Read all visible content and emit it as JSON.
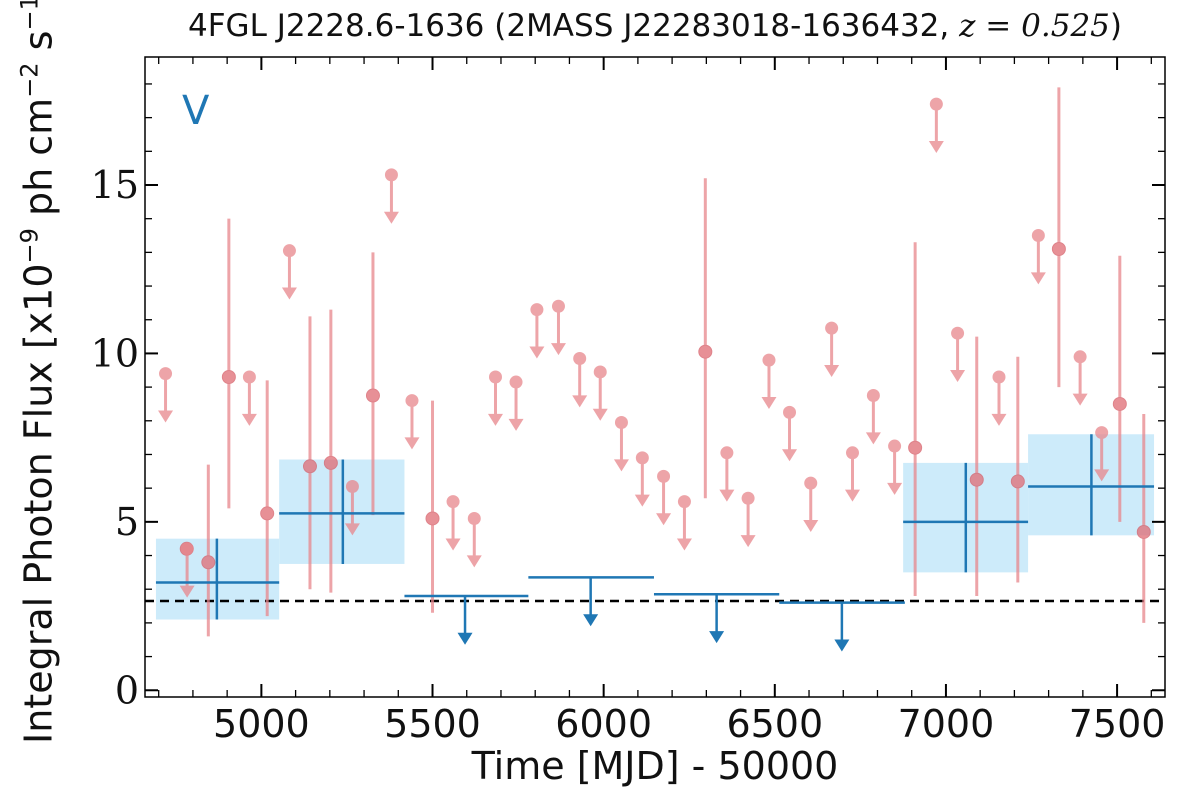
{
  "chart_data": {
    "type": "scatter",
    "title": "4FGL J2228.6-1636 (2MASS J22283018-1636432, z = 0.525)",
    "title_parts": {
      "prefix": "4FGL J2228.6-1636 (2MASS J22283018-1636432, ",
      "math": "z = 0.525",
      "suffix": ")"
    },
    "panel_label": "V",
    "xlabel": "Time [MJD] - 50000",
    "ylabel": "Integral Photon Flux [x10⁻⁹ ph cm⁻² s⁻¹]",
    "ylabel_parts": {
      "prefix": "Integral Photon Flux [x10",
      "exp1": "−9",
      "mid": " ph cm",
      "exp2": "−2",
      "mid2": " s",
      "exp3": "−1",
      "suffix": "]"
    },
    "xlim": [
      4660,
      7640
    ],
    "ylim": [
      -0.2,
      18.8
    ],
    "xticks": [
      5000,
      5500,
      6000,
      6500,
      7000,
      7500
    ],
    "xtick_labels": [
      "5000",
      "5500",
      "6000",
      "6500",
      "7000",
      "7500"
    ],
    "yticks": [
      0,
      5,
      10,
      15
    ],
    "ytick_labels": [
      "0",
      "5",
      "10",
      "15"
    ],
    "grid": false,
    "reference_line": {
      "y": 2.65,
      "style": "dashed",
      "color": "#000000"
    },
    "colors": {
      "short_bins": "#e8868c",
      "long_bins": "#1f77b4",
      "long_bin_band": "#cdebfa"
    },
    "series": [
      {
        "kind": "short-bin detections",
        "points": [
          {
            "x": 4782,
            "y": 4.2,
            "ylo": 4.2,
            "yhi": 4.2
          },
          {
            "x": 4845,
            "y": 3.8,
            "ylo": 1.6,
            "yhi": 6.7
          },
          {
            "x": 4905,
            "y": 9.3,
            "ylo": 5.4,
            "yhi": 14.0
          },
          {
            "x": 5017,
            "y": 5.25,
            "ylo": 2.2,
            "yhi": 9.2
          },
          {
            "x": 5142,
            "y": 6.65,
            "ylo": 3.0,
            "yhi": 11.1
          },
          {
            "x": 5203,
            "y": 6.75,
            "ylo": 2.9,
            "yhi": 11.3
          },
          {
            "x": 5326,
            "y": 8.75,
            "ylo": 5.2,
            "yhi": 13.0
          },
          {
            "x": 5500,
            "y": 5.1,
            "ylo": 2.3,
            "yhi": 8.6
          },
          {
            "x": 6297,
            "y": 10.05,
            "ylo": 5.7,
            "yhi": 15.2
          },
          {
            "x": 6910,
            "y": 7.2,
            "ylo": 2.8,
            "yhi": 13.3
          },
          {
            "x": 7090,
            "y": 6.25,
            "ylo": 2.8,
            "yhi": 10.5
          },
          {
            "x": 7210,
            "y": 6.2,
            "ylo": 3.2,
            "yhi": 9.9
          },
          {
            "x": 7330,
            "y": 13.1,
            "ylo": 9.0,
            "yhi": 17.9
          },
          {
            "x": 7508,
            "y": 8.5,
            "ylo": 5.0,
            "yhi": 12.9
          },
          {
            "x": 7578,
            "y": 4.7,
            "ylo": 2.0,
            "yhi": 8.2
          }
        ]
      },
      {
        "kind": "short-bin upper limits",
        "points": [
          {
            "x": 4720,
            "y": 9.4
          },
          {
            "x": 4783,
            "y": 4.2
          },
          {
            "x": 4965,
            "y": 9.3
          },
          {
            "x": 5082,
            "y": 13.05
          },
          {
            "x": 5266,
            "y": 6.05
          },
          {
            "x": 5380,
            "y": 15.3
          },
          {
            "x": 5440,
            "y": 8.6
          },
          {
            "x": 5560,
            "y": 5.6
          },
          {
            "x": 5622,
            "y": 5.1
          },
          {
            "x": 5684,
            "y": 9.3
          },
          {
            "x": 5744,
            "y": 9.15
          },
          {
            "x": 5805,
            "y": 11.3
          },
          {
            "x": 5868,
            "y": 11.4
          },
          {
            "x": 5930,
            "y": 9.85
          },
          {
            "x": 5990,
            "y": 9.45
          },
          {
            "x": 6052,
            "y": 7.95
          },
          {
            "x": 6113,
            "y": 6.9
          },
          {
            "x": 6175,
            "y": 6.35
          },
          {
            "x": 6236,
            "y": 5.6
          },
          {
            "x": 6360,
            "y": 7.05
          },
          {
            "x": 6422,
            "y": 5.7
          },
          {
            "x": 6483,
            "y": 9.8
          },
          {
            "x": 6543,
            "y": 8.25
          },
          {
            "x": 6605,
            "y": 6.15
          },
          {
            "x": 6666,
            "y": 10.75
          },
          {
            "x": 6727,
            "y": 7.05
          },
          {
            "x": 6788,
            "y": 8.75
          },
          {
            "x": 6850,
            "y": 7.25
          },
          {
            "x": 6972,
            "y": 17.4
          },
          {
            "x": 7034,
            "y": 10.6
          },
          {
            "x": 7155,
            "y": 9.3
          },
          {
            "x": 7270,
            "y": 13.5
          },
          {
            "x": 7392,
            "y": 9.9
          },
          {
            "x": 7455,
            "y": 7.65
          }
        ]
      },
      {
        "kind": "long-bin detections",
        "points": [
          {
            "x": 4870,
            "xlo": 4692,
            "xhi": 5052,
            "y": 3.2,
            "ylo": 2.1,
            "yhi": 4.5
          },
          {
            "x": 5238,
            "xlo": 5052,
            "xhi": 5418,
            "y": 5.25,
            "ylo": 3.75,
            "yhi": 6.85
          },
          {
            "x": 7058,
            "xlo": 6875,
            "xhi": 7240,
            "y": 5.0,
            "ylo": 3.5,
            "yhi": 6.75
          },
          {
            "x": 7425,
            "xlo": 7240,
            "xhi": 7608,
            "y": 6.05,
            "ylo": 4.6,
            "yhi": 7.6
          }
        ]
      },
      {
        "kind": "long-bin upper limits",
        "points": [
          {
            "x": 5595,
            "xlo": 5418,
            "xhi": 5780,
            "y": 2.8
          },
          {
            "x": 5962,
            "xlo": 5780,
            "xhi": 6147,
            "y": 3.35
          },
          {
            "x": 6330,
            "xlo": 6147,
            "xhi": 6513,
            "y": 2.85
          },
          {
            "x": 6696,
            "xlo": 6513,
            "xhi": 6880,
            "y": 2.6
          }
        ]
      }
    ]
  }
}
